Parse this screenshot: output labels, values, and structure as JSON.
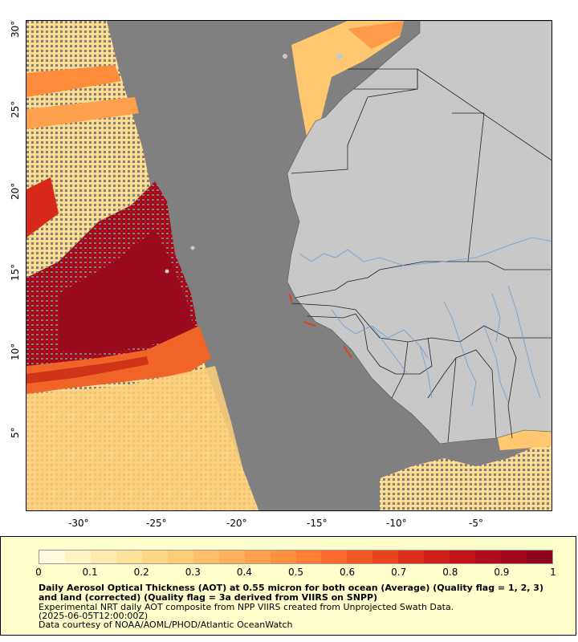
{
  "map": {
    "longitude_ticks": [
      "-30°",
      "-25°",
      "-20°",
      "-15°",
      "-10°",
      "-5°"
    ],
    "latitude_ticks": [
      "30°",
      "25°",
      "20°",
      "15°",
      "10°",
      "5°"
    ],
    "colors": {
      "ocean_nodata": "#808080",
      "land": "#c8c8c8",
      "borders": "#222222",
      "rivers": "#6aa0d8"
    }
  },
  "legend": {
    "colorbar_ticks": [
      "0",
      "0.1",
      "0.2",
      "0.3",
      "0.4",
      "0.5",
      "0.6",
      "0.7",
      "0.8",
      "0.9",
      "1"
    ],
    "colorbar_colors": [
      "#fffbe0",
      "#fff3c4",
      "#ffebb0",
      "#ffe29a",
      "#ffd788",
      "#ffcc76",
      "#ffbf66",
      "#ffb058",
      "#ffa04c",
      "#ff9040",
      "#ff7f34",
      "#fb6c2c",
      "#f25826",
      "#e84420",
      "#dc301c",
      "#cf201a",
      "#c01418",
      "#b00c1a",
      "#a0081c",
      "#8e061e"
    ],
    "title": "Daily Aerosol Optical Thickness (AOT) at 0.55 micron for both ocean (Average) (Quality flag = 1, 2, 3) and land (corrected) (Quality flag = 3a derived from VIIRS on SNPP)",
    "description": "Experimental NRT daily AOT composite from NPP VIIRS created from Unprojected Swath Data.",
    "date": "(2025-06-05T12:00:00Z)",
    "credit": "Data courtesy of NOAA/AOML/PHOD/Atlantic OceanWatch"
  }
}
